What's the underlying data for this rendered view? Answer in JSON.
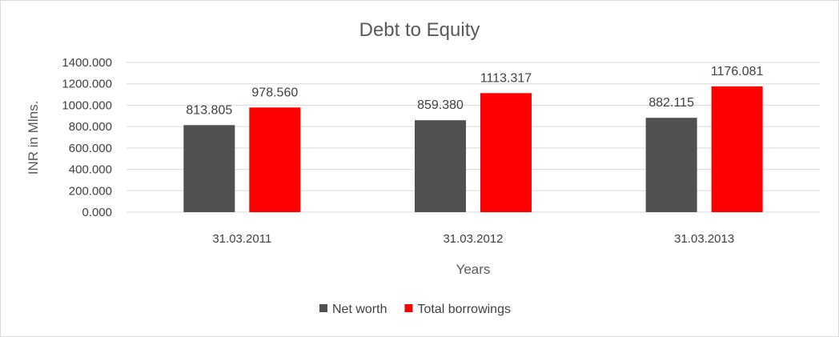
{
  "chart_data": {
    "type": "bar",
    "title": "Debt to Equity",
    "xlabel": "Years",
    "ylabel": "INR in Mlns.",
    "categories": [
      "31.03.2011",
      "31.03.2012",
      "31.03.2013"
    ],
    "series": [
      {
        "name": "Net worth",
        "color": "#505050",
        "values": [
          813.805,
          859.38,
          882.115
        ],
        "labels": [
          "813.805",
          "859.380",
          "882.115"
        ]
      },
      {
        "name": "Total borrowings",
        "color": "#ff0000",
        "values": [
          978.56,
          1113.317,
          1176.081
        ],
        "labels": [
          "978.560",
          "1113.317",
          "1176.081"
        ]
      }
    ],
    "ylim": [
      0,
      1400
    ],
    "yticks": [
      "0.000",
      "200.000",
      "400.000",
      "600.000",
      "800.000",
      "1000.000",
      "1200.000",
      "1400.000"
    ],
    "grid": true,
    "legend_position": "bottom",
    "colors": {
      "gridline": "#d9d9d9",
      "text": "#404040"
    }
  }
}
